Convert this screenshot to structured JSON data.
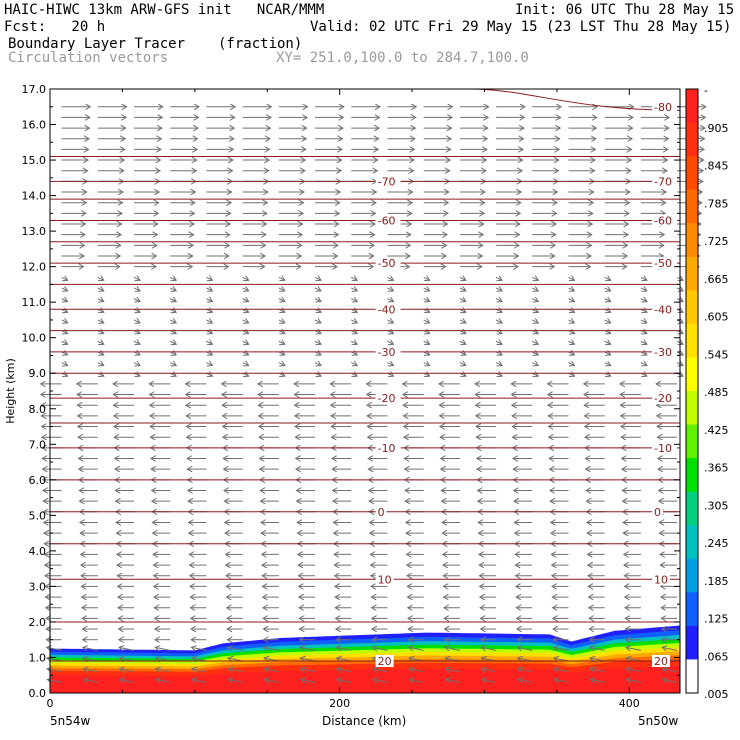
{
  "header": {
    "line1_left": "HAIC-HIWC 13km ARW-GFS init   NCAR/MMM",
    "line1_right": "Init: 06 UTC Thu 28 May 15",
    "line2_left": "Fcst:   20 h",
    "line2_right": "Valid: 02 UTC Fri 29 May 15 (23 LST Thu 28 May 15)",
    "line3_left": "Boundary Layer Tracer",
    "line3_mid": "(fraction)",
    "line4_left": "Circulation vectors",
    "line4_mid": "XY= 251.0,100.0 to 284.7,100.0"
  },
  "bottom": {
    "left_point": "5n54w",
    "right_point": "5n50w"
  },
  "chart_data": {
    "type": "cross-section",
    "ylabel": "Height (km)",
    "xlabel": "Distance (km)",
    "ylim": [
      0,
      17
    ],
    "xlim": [
      0,
      435
    ],
    "y_ticks": [
      "0.0",
      "1.0",
      "2.0",
      "3.0",
      "4.0",
      "5.0",
      "6.0",
      "7.0",
      "8.0",
      "9.0",
      "10.0",
      "11.0",
      "12.0",
      "13.0",
      "14.0",
      "15.0",
      "16.0",
      "17.0"
    ],
    "x_ticks": [
      "0",
      "200",
      "400"
    ],
    "x_tick_values": [
      0,
      200,
      400
    ],
    "colorbar": {
      "labels": [
        "-",
        ".905",
        ".845",
        ".785",
        ".725",
        ".665",
        ".605",
        ".545",
        ".485",
        ".425",
        ".365",
        ".305",
        ".245",
        ".185",
        ".125",
        ".065",
        ".005"
      ],
      "colors": [
        "#ff2020",
        "#ff3010",
        "#ff4a00",
        "#ff6a00",
        "#ff8c00",
        "#ffaa00",
        "#ffc800",
        "#ffe000",
        "#ffff00",
        "#c0ff00",
        "#60f000",
        "#00e000",
        "#00d080",
        "#00c0c0",
        "#00a0e0",
        "#1060ff",
        "#2020ff",
        "#ffffff"
      ]
    },
    "temperature_contours": [
      {
        "label": "-80",
        "height_km": 16.5
      },
      {
        "label": "-70",
        "height_km": 14.4
      },
      {
        "label": "-60",
        "height_km": 13.3
      },
      {
        "label": "-50",
        "height_km": 12.1
      },
      {
        "label": "-40",
        "height_km": 10.8
      },
      {
        "label": "-30",
        "height_km": 9.6
      },
      {
        "label": "-20",
        "height_km": 8.3
      },
      {
        "label": "-10",
        "height_km": 6.9
      },
      {
        "label": "0",
        "height_km": 5.1
      },
      {
        "label": "10",
        "height_km": 3.2
      },
      {
        "label": "20",
        "height_km": 0.9
      }
    ],
    "contour_extra_heights_km": [
      15.1,
      13.9,
      12.7,
      11.5,
      10.2,
      9.0,
      7.6,
      6.0,
      4.2,
      2.0
    ],
    "tracer_top_km": [
      {
        "x": 0,
        "y": 1.25
      },
      {
        "x": 100,
        "y": 1.2
      },
      {
        "x": 120,
        "y": 1.4
      },
      {
        "x": 160,
        "y": 1.55
      },
      {
        "x": 260,
        "y": 1.7
      },
      {
        "x": 345,
        "y": 1.65
      },
      {
        "x": 360,
        "y": 1.45
      },
      {
        "x": 390,
        "y": 1.75
      },
      {
        "x": 435,
        "y": 1.9
      }
    ],
    "wind_regimes": [
      {
        "from_km": 12.0,
        "to_km": 17.0,
        "direction": "east",
        "strength": "strong"
      },
      {
        "from_km": 9.0,
        "to_km": 12.0,
        "direction": "variable",
        "strength": "weak"
      },
      {
        "from_km": 0.0,
        "to_km": 9.0,
        "direction": "west",
        "strength": "moderate"
      }
    ]
  }
}
